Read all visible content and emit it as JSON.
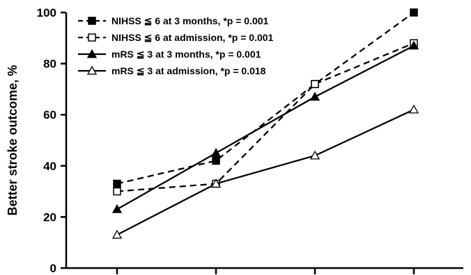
{
  "chart_data": {
    "type": "line",
    "ylabel": "Better stroke outcome, %",
    "xlabel": "",
    "ylim": [
      0,
      100
    ],
    "yticks": [
      0,
      20,
      40,
      60,
      80,
      100
    ],
    "categories": [
      "",
      "",
      "",
      ""
    ],
    "grid": false,
    "legend_position": "top-left",
    "series": [
      {
        "name": "NIHSS ≦ 6 at 3 months, *p = 0.001",
        "values": [
          33,
          42,
          72,
          100
        ],
        "line_style": "dashed",
        "marker": "filled-square",
        "color": "#000000"
      },
      {
        "name": "NIHSS ≦ 6 at admission, *p = 0.001",
        "values": [
          30,
          33,
          72,
          88
        ],
        "line_style": "dashed",
        "marker": "open-square",
        "color": "#000000"
      },
      {
        "name": "mRS ≦ 3 at 3 months, *p = 0.001",
        "values": [
          23,
          45,
          67,
          87
        ],
        "line_style": "solid",
        "marker": "filled-triangle",
        "color": "#000000"
      },
      {
        "name": "mRS ≦ 3 at admission, *p = 0.018",
        "values": [
          13,
          33,
          44,
          62
        ],
        "line_style": "solid",
        "marker": "open-triangle",
        "color": "#000000"
      }
    ]
  }
}
